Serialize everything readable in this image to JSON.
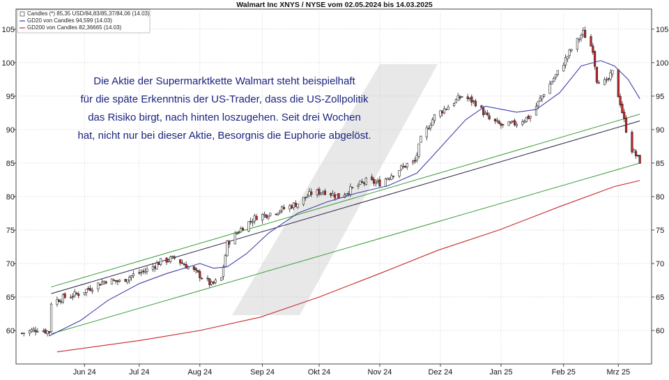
{
  "chart_data": {
    "type": "candlestick",
    "title": "Walmart Inc XNYS / NYSE vom 02.05.2024 bis 14.03.2025",
    "xlabel": "",
    "ylabel": "",
    "ylim": [
      55,
      108
    ],
    "yticks": [
      60,
      65,
      70,
      75,
      80,
      85,
      90,
      95,
      100,
      105
    ],
    "grid": true,
    "legend_position": "top-left",
    "x_ticks": [
      {
        "date": "2024-06-03",
        "label": "Jun 24"
      },
      {
        "date": "2024-07-01",
        "label": "Jul 24"
      },
      {
        "date": "2024-08-01",
        "label": "Aug 24"
      },
      {
        "date": "2024-09-02",
        "label": "Sep 24"
      },
      {
        "date": "2024-10-01",
        "label": "Okt 24"
      },
      {
        "date": "2024-11-01",
        "label": "Nov 24"
      },
      {
        "date": "2024-12-02",
        "label": "Dez 24"
      },
      {
        "date": "2025-01-02",
        "label": "Jan 25"
      },
      {
        "date": "2025-02-03",
        "label": "Feb 25"
      },
      {
        "date": "2025-03-03",
        "label": "Mrz 25"
      }
    ],
    "legend": [
      {
        "label": "Candles (*) 85,35 USD/84,83/85,37/84,06 (14.03)",
        "kind": "candle",
        "color": "#000000"
      },
      {
        "label": "GD20 von Candles 94,599 (14.03)",
        "kind": "line",
        "color": "#3f3fa8"
      },
      {
        "label": "GD200 von Candles 82,36665 (14.03)",
        "kind": "line",
        "color": "#c62828"
      }
    ],
    "annotation": [
      "Die Aktie der Supermarktkette Walmart steht beispielhaft",
      "für die späte Erkenntnis der US-Trader, dass die US-Zollpolitik",
      "das Risiko birgt, nach hinten loszugehen. Seit drei Wochen",
      "hat, nicht nur bei dieser Aktie, Besorgnis die Euphorie abgelöst."
    ],
    "price_keypoints": [
      [
        "2024-05-02",
        59.6
      ],
      [
        "2024-05-10",
        60.2
      ],
      [
        "2024-05-16",
        59.8
      ],
      [
        "2024-05-17",
        64.2
      ],
      [
        "2024-05-24",
        65.0
      ],
      [
        "2024-05-31",
        65.5
      ],
      [
        "2024-06-07",
        66.5
      ],
      [
        "2024-06-14",
        67.5
      ],
      [
        "2024-06-21",
        67.3
      ],
      [
        "2024-06-28",
        68.3
      ],
      [
        "2024-07-05",
        69.0
      ],
      [
        "2024-07-12",
        70.3
      ],
      [
        "2024-07-19",
        70.8
      ],
      [
        "2024-07-26",
        69.5
      ],
      [
        "2024-08-02",
        68.0
      ],
      [
        "2024-08-07",
        66.8
      ],
      [
        "2024-08-12",
        67.8
      ],
      [
        "2024-08-15",
        73.0
      ],
      [
        "2024-08-23",
        75.5
      ],
      [
        "2024-08-30",
        77.0
      ],
      [
        "2024-09-06",
        77.5
      ],
      [
        "2024-09-13",
        78.2
      ],
      [
        "2024-09-20",
        79.0
      ],
      [
        "2024-09-27",
        80.5
      ],
      [
        "2024-10-04",
        80.8
      ],
      [
        "2024-10-11",
        80.0
      ],
      [
        "2024-10-18",
        81.2
      ],
      [
        "2024-10-25",
        82.3
      ],
      [
        "2024-11-01",
        82.0
      ],
      [
        "2024-11-08",
        83.5
      ],
      [
        "2024-11-15",
        84.8
      ],
      [
        "2024-11-19",
        85.2
      ],
      [
        "2024-11-22",
        88.5
      ],
      [
        "2024-11-29",
        92.0
      ],
      [
        "2024-12-06",
        93.5
      ],
      [
        "2024-12-13",
        95.0
      ],
      [
        "2024-12-20",
        94.0
      ],
      [
        "2024-12-27",
        91.5
      ],
      [
        "2025-01-03",
        90.5
      ],
      [
        "2025-01-10",
        91.0
      ],
      [
        "2025-01-17",
        92.0
      ],
      [
        "2025-01-24",
        95.5
      ],
      [
        "2025-01-31",
        98.5
      ],
      [
        "2025-02-07",
        102.0
      ],
      [
        "2025-02-13",
        104.5
      ],
      [
        "2025-02-18",
        102.0
      ],
      [
        "2025-02-20",
        97.5
      ],
      [
        "2025-02-25",
        97.0
      ],
      [
        "2025-02-28",
        98.5
      ],
      [
        "2025-03-04",
        94.0
      ],
      [
        "2025-03-07",
        90.0
      ],
      [
        "2025-03-10",
        87.0
      ],
      [
        "2025-03-14",
        85.3
      ]
    ],
    "gd20": [
      [
        "2024-05-16",
        59.2
      ],
      [
        "2024-06-01",
        61.5
      ],
      [
        "2024-06-15",
        64.5
      ],
      [
        "2024-07-01",
        67.0
      ],
      [
        "2024-07-15",
        68.5
      ],
      [
        "2024-08-01",
        70.0
      ],
      [
        "2024-08-08",
        69.3
      ],
      [
        "2024-08-15",
        69.5
      ],
      [
        "2024-08-25",
        71.5
      ],
      [
        "2024-09-05",
        74.5
      ],
      [
        "2024-09-20",
        77.5
      ],
      [
        "2024-10-05",
        79.2
      ],
      [
        "2024-10-20",
        80.5
      ],
      [
        "2024-11-05",
        81.6
      ],
      [
        "2024-11-20",
        83.5
      ],
      [
        "2024-12-01",
        87.0
      ],
      [
        "2024-12-15",
        91.5
      ],
      [
        "2024-12-25",
        93.5
      ],
      [
        "2025-01-10",
        92.6
      ],
      [
        "2025-01-20",
        93.0
      ],
      [
        "2025-02-01",
        95.5
      ],
      [
        "2025-02-12",
        99.5
      ],
      [
        "2025-02-22",
        100.3
      ],
      [
        "2025-03-01",
        99.5
      ],
      [
        "2025-03-08",
        97.5
      ],
      [
        "2025-03-14",
        94.6
      ]
    ],
    "gd200": [
      [
        "2024-05-20",
        56.8
      ],
      [
        "2024-07-01",
        58.5
      ],
      [
        "2024-08-01",
        60.0
      ],
      [
        "2024-09-01",
        62.0
      ],
      [
        "2024-10-01",
        65.0
      ],
      [
        "2024-11-01",
        68.5
      ],
      [
        "2024-12-01",
        72.0
      ],
      [
        "2025-01-01",
        75.0
      ],
      [
        "2025-02-01",
        78.5
      ],
      [
        "2025-03-01",
        81.5
      ],
      [
        "2025-03-14",
        82.4
      ]
    ],
    "trendlines": [
      {
        "color": "#3a9a3a",
        "from": [
          "2024-05-17",
          66.5
        ],
        "to": [
          "2025-03-14",
          92.3
        ]
      },
      {
        "color": "#222244",
        "from": [
          "2024-05-17",
          65.5
        ],
        "to": [
          "2025-03-14",
          91.3
        ]
      },
      {
        "color": "#3a9a3a",
        "from": [
          "2024-05-17",
          59.5
        ],
        "to": [
          "2025-03-14",
          85.0
        ]
      }
    ]
  }
}
